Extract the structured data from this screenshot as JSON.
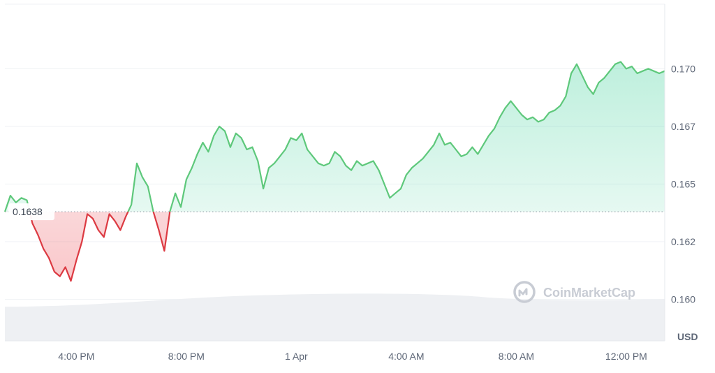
{
  "chart_data": {
    "type": "line",
    "unit": "USD",
    "reference_value": 0.1638,
    "reference_label": "0.1638",
    "ylim": [
      0.1582,
      0.1728
    ],
    "yticks": [
      {
        "value": 0.17,
        "label": "0.170"
      },
      {
        "value": 0.1675,
        "label": "0.167"
      },
      {
        "value": 0.165,
        "label": "0.165"
      },
      {
        "value": 0.1625,
        "label": "0.162"
      },
      {
        "value": 0.16,
        "label": "0.160"
      }
    ],
    "xlim": [
      0,
      120
    ],
    "xticks": [
      {
        "value": 13,
        "label": "4:00 PM"
      },
      {
        "value": 33,
        "label": "8:00 PM"
      },
      {
        "value": 53,
        "label": "1 Apr"
      },
      {
        "value": 73,
        "label": "4:00 AM"
      },
      {
        "value": 93,
        "label": "8:00 AM"
      },
      {
        "value": 113,
        "label": "12:00 PM"
      }
    ],
    "x": [
      0,
      1,
      2,
      3,
      4,
      5,
      6,
      7,
      8,
      9,
      10,
      11,
      12,
      13,
      14,
      15,
      16,
      17,
      18,
      19,
      20,
      21,
      22,
      23,
      24,
      25,
      26,
      27,
      28,
      29,
      30,
      31,
      32,
      33,
      34,
      35,
      36,
      37,
      38,
      39,
      40,
      41,
      42,
      43,
      44,
      45,
      46,
      47,
      48,
      49,
      50,
      51,
      52,
      53,
      54,
      55,
      56,
      57,
      58,
      59,
      60,
      61,
      62,
      63,
      64,
      65,
      66,
      67,
      68,
      69,
      70,
      71,
      72,
      73,
      74,
      75,
      76,
      77,
      78,
      79,
      80,
      81,
      82,
      83,
      84,
      85,
      86,
      87,
      88,
      89,
      90,
      91,
      92,
      93,
      94,
      95,
      96,
      97,
      98,
      99,
      100,
      101,
      102,
      103,
      104,
      105,
      106,
      107,
      108,
      109,
      110,
      111,
      112,
      113,
      114,
      115,
      116,
      117,
      118,
      119,
      120
    ],
    "values": [
      0.1638,
      0.1645,
      0.1642,
      0.1644,
      0.1643,
      0.1633,
      0.1628,
      0.1622,
      0.1618,
      0.1612,
      0.161,
      0.1614,
      0.1608,
      0.1617,
      0.1625,
      0.1637,
      0.1635,
      0.163,
      0.1627,
      0.1637,
      0.1634,
      0.163,
      0.1636,
      0.1641,
      0.1659,
      0.1653,
      0.1649,
      0.1638,
      0.163,
      0.1621,
      0.1638,
      0.1646,
      0.164,
      0.1652,
      0.1657,
      0.1663,
      0.1668,
      0.1664,
      0.1671,
      0.1675,
      0.1673,
      0.1666,
      0.1672,
      0.167,
      0.1665,
      0.1666,
      0.166,
      0.1648,
      0.1657,
      0.1659,
      0.1662,
      0.1665,
      0.167,
      0.1669,
      0.1672,
      0.1665,
      0.1662,
      0.1659,
      0.1658,
      0.1659,
      0.1664,
      0.1662,
      0.1658,
      0.1656,
      0.166,
      0.1658,
      0.1659,
      0.166,
      0.1656,
      0.165,
      0.1644,
      0.1646,
      0.1648,
      0.1654,
      0.1657,
      0.1659,
      0.1661,
      0.1664,
      0.1667,
      0.1672,
      0.1667,
      0.1668,
      0.1665,
      0.1662,
      0.1663,
      0.1666,
      0.1663,
      0.1667,
      0.1671,
      0.1674,
      0.1679,
      0.1683,
      0.1686,
      0.1683,
      0.168,
      0.1678,
      0.1679,
      0.1677,
      0.1678,
      0.1681,
      0.1682,
      0.1684,
      0.1688,
      0.1698,
      0.1702,
      0.1697,
      0.1692,
      0.1689,
      0.1694,
      0.1696,
      0.1699,
      0.1702,
      0.1703,
      0.17,
      0.1701,
      0.1698,
      0.1699,
      0.17,
      0.1699,
      0.1698,
      0.1699
    ]
  },
  "watermark": {
    "text": "CoinMarketCap"
  },
  "colors": {
    "up": "#16c784",
    "up_line": "#5ec87b",
    "down": "#dc3a42",
    "grid": "#eff2f5",
    "volume": "#eef0f3"
  }
}
